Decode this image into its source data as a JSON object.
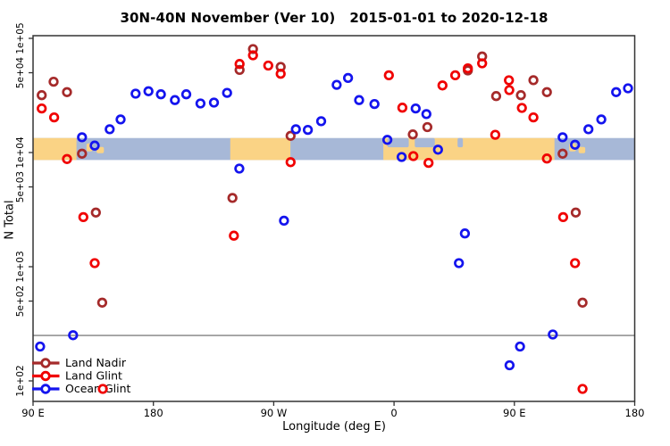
{
  "colors": {
    "background": "#FFFFFF",
    "axis": "#333333",
    "reference_line": "#808080",
    "land_nadir": "#A52A2A",
    "land_glint": "#F00000",
    "ocean_glint": "#1414EE",
    "map_land": "#FAD385",
    "map_ocean": "#A7B8D7"
  },
  "legend": {
    "items": [
      {
        "label": "Land Nadir",
        "color": "#A52A2A"
      },
      {
        "label": "Land Glint",
        "color": "#F00000"
      },
      {
        "label": "Ocean Glint",
        "color": "#1414EE"
      }
    ]
  },
  "chart_data": {
    "type": "scatter",
    "title": "30N-40N November (Ver 10)   2015-01-01 to 2020-12-18",
    "xlabel": "Longitude (deg E)",
    "ylabel": "N Total",
    "y_scale": "log10",
    "ylim": [
      63,
      105000
    ],
    "x_axis_deg_range": [
      90,
      540
    ],
    "grid": false,
    "legend_position": "bottom-left-inside",
    "x_ticks": [
      {
        "deg": 90,
        "label": "90 E"
      },
      {
        "deg": 180,
        "label": "180"
      },
      {
        "deg": 270,
        "label": "90 W"
      },
      {
        "deg": 360,
        "label": "0"
      },
      {
        "deg": 450,
        "label": "90 E"
      },
      {
        "deg": 540,
        "label": "180"
      }
    ],
    "y_ticks": [
      {
        "value": 100000,
        "label": "1e+05"
      },
      {
        "value": 50000,
        "label": "5e+04"
      },
      {
        "value": 10000,
        "label": "1e+04"
      },
      {
        "value": 5000,
        "label": "5e+03"
      },
      {
        "value": 1000,
        "label": "1e+03"
      },
      {
        "value": 500,
        "label": "5e+02"
      },
      {
        "value": 100,
        "label": "1e+02"
      }
    ],
    "reference_line": {
      "value": 250,
      "color": "#808080"
    },
    "map_strip": {
      "description": "30N-40N latitude world-map band drawn across the plot",
      "value_top": 13400,
      "value_bottom": 8600,
      "ocean_color": "#A7B8D7",
      "land_color": "#FAD385",
      "land_segments_deg": [
        [
          90,
          122.5
        ],
        [
          237.5,
          282.5
        ],
        [
          352,
          480
        ]
      ],
      "island_patches_deg": [
        [
          130,
          134.5
        ],
        [
          137.5,
          143
        ],
        [
          491,
          496
        ],
        [
          498,
          503
        ]
      ],
      "inland_sea_patches_deg": [
        [
          355,
          371
        ],
        [
          375.5,
          390.5
        ],
        [
          407.5,
          411.5
        ]
      ]
    },
    "series": [
      {
        "name": "Land Nadir",
        "color": "#A52A2A",
        "points": [
          [
            96.5,
            31800
          ],
          [
            105.4,
            41700
          ],
          [
            115.4,
            33800
          ],
          [
            126.6,
            9770
          ],
          [
            137,
            2980
          ],
          [
            141.7,
            484
          ],
          [
            239.1,
            4000
          ],
          [
            244.5,
            52900
          ],
          [
            254.5,
            80600
          ],
          [
            275.2,
            56200
          ],
          [
            282.6,
            14000
          ],
          [
            374,
            14400
          ],
          [
            384.9,
            16700
          ],
          [
            415.2,
            52300
          ],
          [
            425.9,
            69400
          ],
          [
            436.4,
            31250
          ],
          [
            454.9,
            31800
          ],
          [
            464.2,
            43000
          ],
          [
            474.3,
            33800
          ],
          [
            486.1,
            9770
          ],
          [
            495.9,
            2980
          ],
          [
            501,
            484
          ]
        ]
      },
      {
        "name": "Land Glint",
        "color": "#F00000",
        "points": [
          [
            96.5,
            24300
          ],
          [
            105.8,
            20300
          ],
          [
            115.4,
            8770
          ],
          [
            127.6,
            2720
          ],
          [
            136.1,
            1074
          ],
          [
            142.2,
            85
          ],
          [
            240.2,
            1870
          ],
          [
            244.5,
            59700
          ],
          [
            254.5,
            71100
          ],
          [
            265.9,
            57800
          ],
          [
            275.2,
            49000
          ],
          [
            282.6,
            8240
          ],
          [
            356.1,
            47500
          ],
          [
            366.2,
            24700
          ],
          [
            374.4,
            9310
          ],
          [
            385.8,
            8110
          ],
          [
            396.2,
            38700
          ],
          [
            405.8,
            47500
          ],
          [
            415.2,
            54600
          ],
          [
            425.9,
            60400
          ],
          [
            435.7,
            14300
          ],
          [
            445.9,
            42900
          ],
          [
            446.2,
            35200
          ],
          [
            455.6,
            24600
          ],
          [
            464.2,
            20300
          ],
          [
            474.3,
            8870
          ],
          [
            486.5,
            2720
          ],
          [
            495.4,
            1074
          ],
          [
            501,
            85
          ]
        ]
      },
      {
        "name": "Ocean Glint",
        "color": "#1414EE",
        "points": [
          [
            95.3,
            200
          ],
          [
            119.9,
            251
          ],
          [
            126.6,
            13600
          ],
          [
            136.1,
            11500
          ],
          [
            147.3,
            16000
          ],
          [
            155.5,
            19500
          ],
          [
            166.7,
            32800
          ],
          [
            176.3,
            34400
          ],
          [
            185.6,
            32400
          ],
          [
            196.1,
            28800
          ],
          [
            204.6,
            32400
          ],
          [
            215.2,
            26900
          ],
          [
            225.3,
            27400
          ],
          [
            235.1,
            33300
          ],
          [
            244.3,
            7230
          ],
          [
            277.7,
            2530
          ],
          [
            286.6,
            16000
          ],
          [
            295.5,
            15800
          ],
          [
            305.5,
            18800
          ],
          [
            317.1,
            39200
          ],
          [
            325.6,
            45000
          ],
          [
            333.9,
            28800
          ],
          [
            345.4,
            26600
          ],
          [
            355,
            12900
          ],
          [
            365.7,
            9140
          ],
          [
            376.2,
            24300
          ],
          [
            384.2,
            21700
          ],
          [
            392.9,
            10600
          ],
          [
            408.5,
            1074
          ],
          [
            413,
            1955
          ],
          [
            446.4,
            137
          ],
          [
            454.2,
            200
          ],
          [
            478.7,
            255
          ],
          [
            486.1,
            13600
          ],
          [
            495.4,
            11700
          ],
          [
            505.4,
            16000
          ],
          [
            515,
            19500
          ],
          [
            526.1,
            33800
          ],
          [
            535,
            36500
          ]
        ]
      }
    ]
  }
}
